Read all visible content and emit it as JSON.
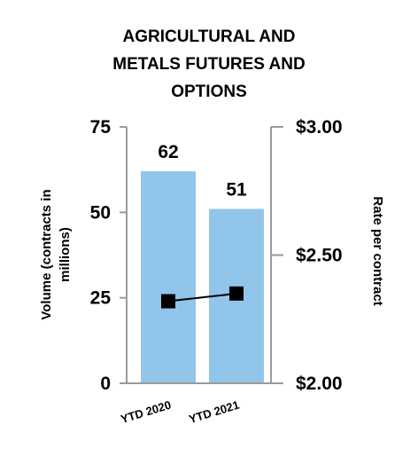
{
  "title_lines": [
    "AGRICULTURAL AND",
    "METALS FUTURES AND",
    "OPTIONS"
  ],
  "chart_data": {
    "type": "bar",
    "title": "AGRICULTURAL AND METALS FUTURES AND OPTIONS",
    "categories": [
      "YTD 2020",
      "YTD 2021"
    ],
    "series": [
      {
        "axis": "left",
        "type": "bar",
        "values": [
          62,
          51
        ],
        "color": "#92c5ea"
      },
      {
        "axis": "right",
        "type": "line",
        "values": [
          2.32,
          2.35
        ],
        "color": "#000000",
        "marker": "square"
      }
    ],
    "ylabel": "Volume (contracts in millions)",
    "y2label": "Rate per contract",
    "ylim": [
      0,
      75
    ],
    "y2lim": [
      2.0,
      3.0
    ],
    "yticks": [
      "0",
      "25",
      "50",
      "75"
    ],
    "y2ticks": [
      "$2.00",
      "$2.50",
      "$3.00"
    ],
    "ylabel_lines": [
      "Volume (contracts in",
      "millions)"
    ],
    "data_labels": [
      "62",
      "51"
    ],
    "grid": false,
    "legend": "none"
  }
}
